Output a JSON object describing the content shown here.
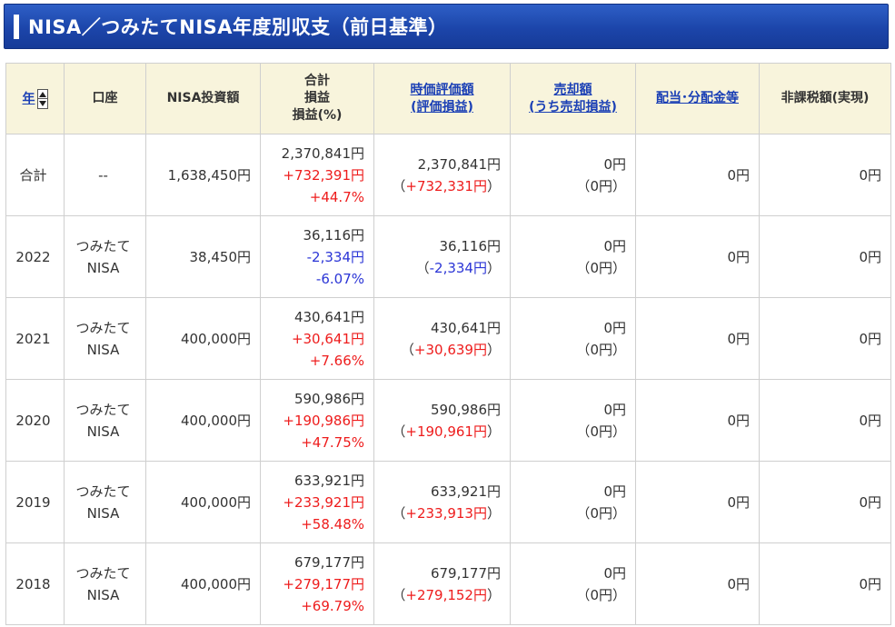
{
  "title": "NISA／つみたてNISA年度別収支（前日基準）",
  "headers": {
    "year": "年",
    "account": "口座",
    "invest": "NISA投資額",
    "total_l1": "合計",
    "total_l2": "損益",
    "total_l3": "損益(%)",
    "valuation_l1": "時価評価額",
    "valuation_l2": "(評価損益)",
    "sale_l1": "売却額",
    "sale_l2": "(うち売却損益)",
    "dividend": "配当･分配金等",
    "taxfree": "非課税額(実現)"
  },
  "rows": [
    {
      "year": "合計",
      "acct1": "--",
      "acct2": "",
      "invest": "1,638,450円",
      "total": "2,370,841円",
      "pl": "+732,391円",
      "pct": "+44.7%",
      "sign": "pos",
      "val": "2,370,841円",
      "val_pl": "+732,331円",
      "sale": "0円",
      "sale_pl": "0円",
      "div": "0円",
      "tax": "0円"
    },
    {
      "year": "2022",
      "acct1": "つみたて",
      "acct2": "NISA",
      "invest": "38,450円",
      "total": "36,116円",
      "pl": "-2,334円",
      "pct": "-6.07%",
      "sign": "neg",
      "val": "36,116円",
      "val_pl": "-2,334円",
      "sale": "0円",
      "sale_pl": "0円",
      "div": "0円",
      "tax": "0円"
    },
    {
      "year": "2021",
      "acct1": "つみたて",
      "acct2": "NISA",
      "invest": "400,000円",
      "total": "430,641円",
      "pl": "+30,641円",
      "pct": "+7.66%",
      "sign": "pos",
      "val": "430,641円",
      "val_pl": "+30,639円",
      "sale": "0円",
      "sale_pl": "0円",
      "div": "0円",
      "tax": "0円"
    },
    {
      "year": "2020",
      "acct1": "つみたて",
      "acct2": "NISA",
      "invest": "400,000円",
      "total": "590,986円",
      "pl": "+190,986円",
      "pct": "+47.75%",
      "sign": "pos",
      "val": "590,986円",
      "val_pl": "+190,961円",
      "sale": "0円",
      "sale_pl": "0円",
      "div": "0円",
      "tax": "0円"
    },
    {
      "year": "2019",
      "acct1": "つみたて",
      "acct2": "NISA",
      "invest": "400,000円",
      "total": "633,921円",
      "pl": "+233,921円",
      "pct": "+58.48%",
      "sign": "pos",
      "val": "633,921円",
      "val_pl": "+233,913円",
      "sale": "0円",
      "sale_pl": "0円",
      "div": "0円",
      "tax": "0円"
    },
    {
      "year": "2018",
      "acct1": "つみたて",
      "acct2": "NISA",
      "invest": "400,000円",
      "total": "679,177円",
      "pl": "+279,177円",
      "pct": "+69.79%",
      "sign": "pos",
      "val": "679,177円",
      "val_pl": "+279,152円",
      "sale": "0円",
      "sale_pl": "0円",
      "div": "0円",
      "tax": "0円"
    }
  ],
  "colors": {
    "title_bg": "#1c45aa",
    "header_bg": "#f8f4dc",
    "positive": "#ee1c1c",
    "negative": "#2b35d6",
    "link": "#1a3fb5"
  }
}
